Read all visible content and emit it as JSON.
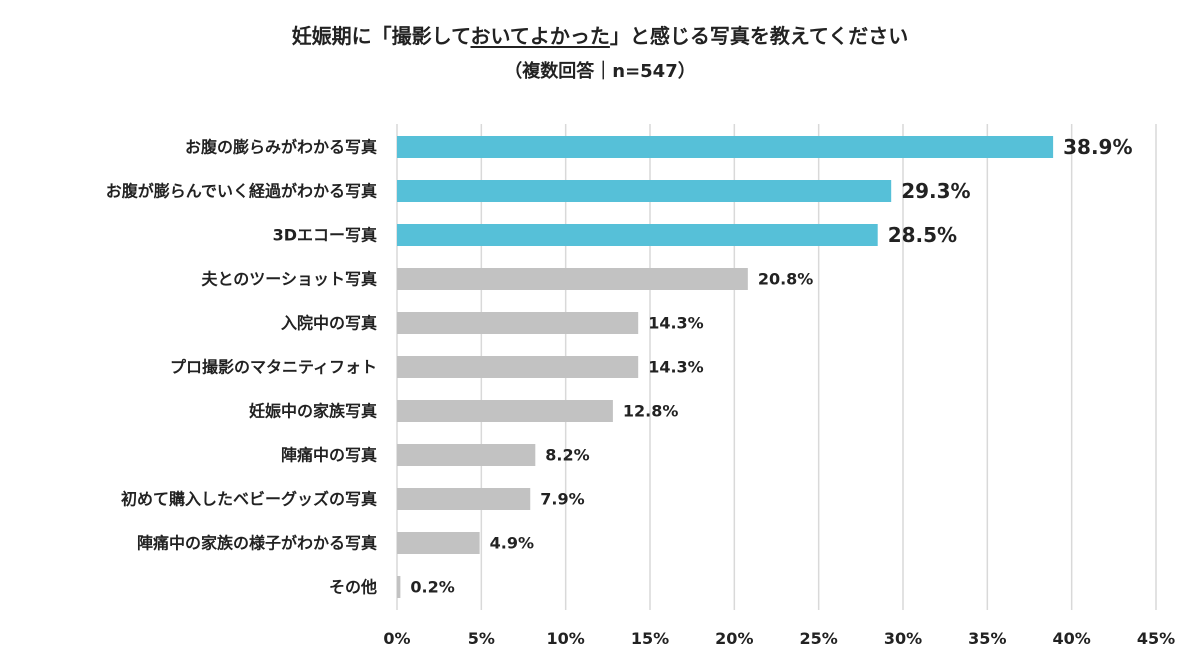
{
  "title": {
    "pre": "妊娠期に「撮影して",
    "underlined": "おいてよかった",
    "post": "」と感じる写真を教えてください",
    "subtitle": "（複数回答｜n=547）"
  },
  "chart_data": {
    "type": "bar",
    "orientation": "horizontal",
    "categories": [
      "お腹の膨らみがわかる写真",
      "お腹が膨らんでいく経過がわかる写真",
      "3Dエコー写真",
      "夫とのツーショット写真",
      "入院中の写真",
      "プロ撮影のマタニティフォト",
      "妊娠中の家族写真",
      "陣痛中の写真",
      "初めて購入したベビーグッズの写真",
      "陣痛中の家族の様子がわかる写真",
      "その他"
    ],
    "values": [
      38.9,
      29.3,
      28.5,
      20.8,
      14.3,
      14.3,
      12.8,
      8.2,
      7.9,
      4.9,
      0.2
    ],
    "value_labels": [
      "38.9%",
      "29.3%",
      "28.5%",
      "20.8%",
      "14.3%",
      "14.3%",
      "12.8%",
      "8.2%",
      "7.9%",
      "4.9%",
      "0.2%"
    ],
    "highlight_count": 3,
    "xlim": [
      0,
      45
    ],
    "ticks": [
      0,
      5,
      10,
      15,
      20,
      25,
      30,
      35,
      40,
      45
    ],
    "tick_labels": [
      "0%",
      "5%",
      "10%",
      "15%",
      "20%",
      "25%",
      "30%",
      "35%",
      "40%",
      "45%"
    ],
    "grid": true,
    "legend": "none",
    "colors": {
      "highlight_bar": "#56C0D8",
      "highlight_text": "#3FA9C4",
      "bar": "#C2C2C2",
      "grid": "#D9D9D9",
      "text": "#222222"
    }
  }
}
